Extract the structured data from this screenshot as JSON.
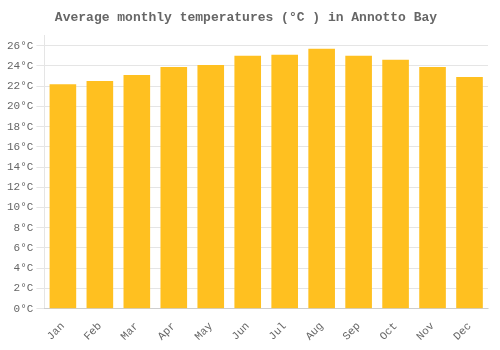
{
  "chart_data": {
    "type": "bar",
    "title": "Average monthly temperatures (°C ) in Annotto Bay",
    "categories": [
      "Jan",
      "Feb",
      "Mar",
      "Apr",
      "May",
      "Jun",
      "Jul",
      "Aug",
      "Sep",
      "Oct",
      "Nov",
      "Dec"
    ],
    "values": [
      22.2,
      22.5,
      23.1,
      23.9,
      24.1,
      25.0,
      25.1,
      25.7,
      25.0,
      24.6,
      23.9,
      22.9
    ],
    "color": "#FFC020",
    "ylim": [
      0,
      27
    ],
    "yticks": [
      {
        "value": 0,
        "label": "0°C"
      },
      {
        "value": 2,
        "label": "2°C"
      },
      {
        "value": 4,
        "label": "4°C"
      },
      {
        "value": 6,
        "label": "6°C"
      },
      {
        "value": 8,
        "label": "8°C"
      },
      {
        "value": 10,
        "label": "10°C"
      },
      {
        "value": 12,
        "label": "12°C"
      },
      {
        "value": 14,
        "label": "14°C"
      },
      {
        "value": 16,
        "label": "16°C"
      },
      {
        "value": 18,
        "label": "18°C"
      },
      {
        "value": 20,
        "label": "20°C"
      },
      {
        "value": 22,
        "label": "22°C"
      },
      {
        "value": 24,
        "label": "24°C"
      },
      {
        "value": 26,
        "label": "26°C"
      }
    ],
    "grid": true
  }
}
